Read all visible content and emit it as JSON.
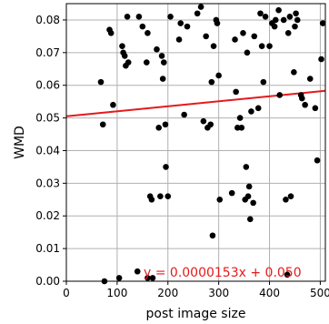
{
  "chart_data": {
    "type": "scatter",
    "xlabel": "post image size",
    "ylabel": "WMD",
    "xlim": [
      0,
      510
    ],
    "ylim": [
      0,
      0.085
    ],
    "xticks": [
      "0",
      "100",
      "200",
      "300",
      "400",
      "500"
    ],
    "xtick_values": [
      0,
      100,
      200,
      300,
      400,
      500
    ],
    "yticks": [
      "0.00",
      "0.01",
      "0.02",
      "0.03",
      "0.04",
      "0.05",
      "0.06",
      "0.07",
      "0.08"
    ],
    "ytick_values": [
      0,
      0.01,
      0.02,
      0.03,
      0.04,
      0.05,
      0.06,
      0.07,
      0.08
    ],
    "grid": true,
    "point_color": "#000000",
    "fit_color": "#e41a1c",
    "fit_line": {
      "slope": 1.53e-05,
      "intercept": 0.0505
    },
    "annotation": "y = 0.0000153x + 0.050",
    "points": [
      [
        68,
        0.061
      ],
      [
        72,
        0.048
      ],
      [
        75,
        0.0
      ],
      [
        85,
        0.077
      ],
      [
        88,
        0.076
      ],
      [
        92,
        0.054
      ],
      [
        104,
        0.001
      ],
      [
        110,
        0.072
      ],
      [
        112,
        0.07
      ],
      [
        115,
        0.069
      ],
      [
        117,
        0.066
      ],
      [
        120,
        0.081
      ],
      [
        122,
        0.067
      ],
      [
        140,
        0.003
      ],
      [
        143,
        0.081
      ],
      [
        150,
        0.078
      ],
      [
        158,
        0.067
      ],
      [
        160,
        0.076
      ],
      [
        160,
        0.001
      ],
      [
        165,
        0.026
      ],
      [
        168,
        0.025
      ],
      [
        170,
        0.001
      ],
      [
        178,
        0.071
      ],
      [
        182,
        0.047
      ],
      [
        185,
        0.026
      ],
      [
        188,
        0.069
      ],
      [
        190,
        0.062
      ],
      [
        192,
        0.067
      ],
      [
        195,
        0.048
      ],
      [
        196,
        0.035
      ],
      [
        200,
        0.026
      ],
      [
        205,
        0.081
      ],
      [
        222,
        0.074
      ],
      [
        225,
        0.079
      ],
      [
        232,
        0.051
      ],
      [
        238,
        0.078
      ],
      [
        258,
        0.082
      ],
      [
        265,
        0.084
      ],
      [
        270,
        0.049
      ],
      [
        275,
        0.075
      ],
      [
        278,
        0.047
      ],
      [
        284,
        0.048
      ],
      [
        286,
        0.061
      ],
      [
        288,
        0.014
      ],
      [
        290,
        0.072
      ],
      [
        295,
        0.08
      ],
      [
        297,
        0.079
      ],
      [
        300,
        0.063
      ],
      [
        302,
        0.025
      ],
      [
        326,
        0.027
      ],
      [
        332,
        0.074
      ],
      [
        334,
        0.058
      ],
      [
        337,
        0.047
      ],
      [
        342,
        0.05
      ],
      [
        345,
        0.047
      ],
      [
        348,
        0.076
      ],
      [
        352,
        0.025
      ],
      [
        354,
        0.035
      ],
      [
        356,
        0.07
      ],
      [
        358,
        0.026
      ],
      [
        360,
        0.029
      ],
      [
        362,
        0.019
      ],
      [
        364,
        0.052
      ],
      [
        368,
        0.024
      ],
      [
        370,
        0.075
      ],
      [
        378,
        0.053
      ],
      [
        382,
        0.082
      ],
      [
        385,
        0.072
      ],
      [
        388,
        0.061
      ],
      [
        392,
        0.081
      ],
      [
        400,
        0.072
      ],
      [
        405,
        0.079
      ],
      [
        410,
        0.078
      ],
      [
        412,
        0.08
      ],
      [
        418,
        0.083
      ],
      [
        420,
        0.057
      ],
      [
        428,
        0.08
      ],
      [
        432,
        0.025
      ],
      [
        435,
        0.002
      ],
      [
        437,
        0.076
      ],
      [
        440,
        0.081
      ],
      [
        442,
        0.026
      ],
      [
        448,
        0.064
      ],
      [
        450,
        0.078
      ],
      [
        452,
        0.082
      ],
      [
        455,
        0.08
      ],
      [
        462,
        0.057
      ],
      [
        464,
        0.056
      ],
      [
        470,
        0.054
      ],
      [
        480,
        0.062
      ],
      [
        490,
        0.053
      ],
      [
        494,
        0.037
      ],
      [
        502,
        0.068
      ],
      [
        505,
        0.079
      ]
    ]
  }
}
